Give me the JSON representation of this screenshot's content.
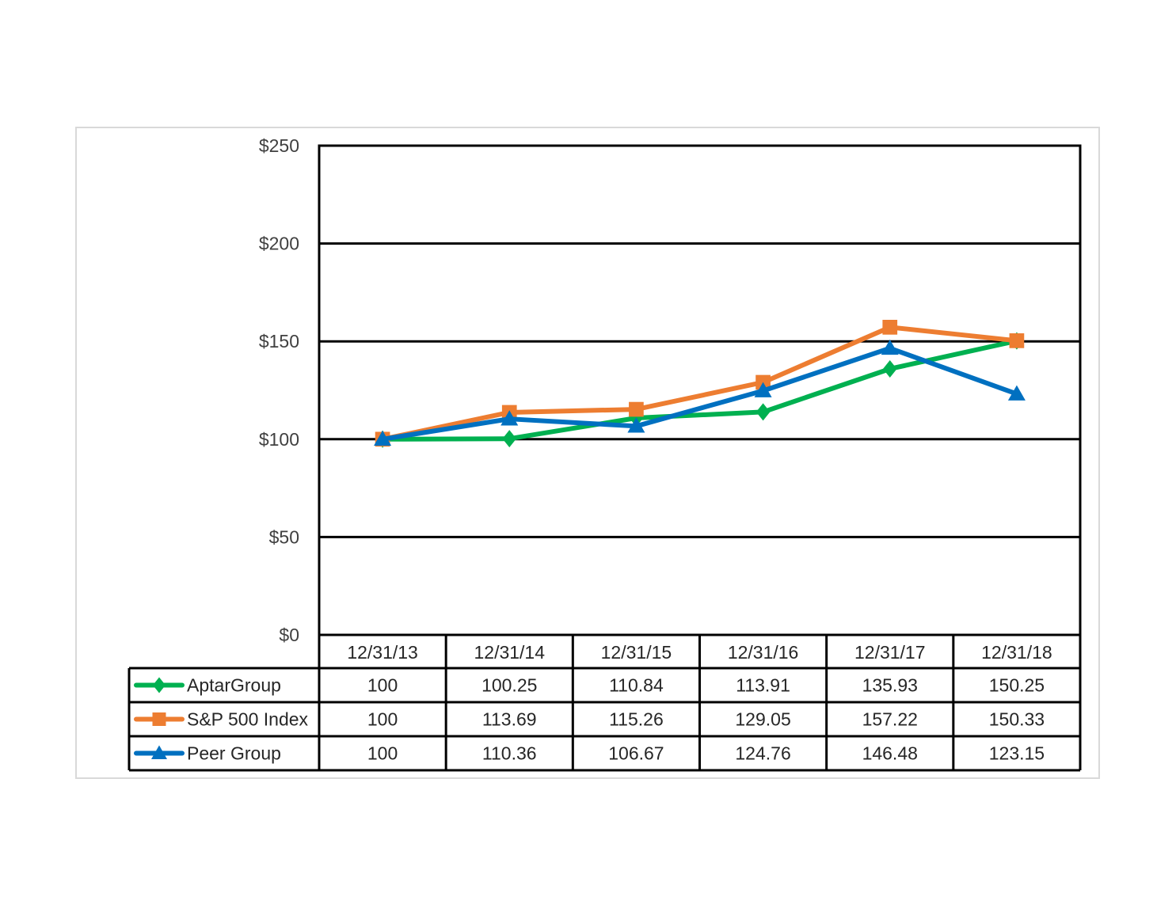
{
  "chart_data": {
    "type": "line",
    "title": "",
    "xlabel": "",
    "ylabel": "",
    "ylim": [
      0,
      250
    ],
    "yticks": [
      "$0",
      "$50",
      "$100",
      "$150",
      "$200",
      "$250"
    ],
    "grid": true,
    "legend_position": "data-table-left",
    "categories": [
      "12/31/13",
      "12/31/14",
      "12/31/15",
      "12/31/16",
      "12/31/17",
      "12/31/18"
    ],
    "series": [
      {
        "name": "AptarGroup",
        "color": "#00b050",
        "marker": "diamond",
        "values": [
          100,
          100.25,
          110.84,
          113.91,
          135.93,
          150.25
        ],
        "labels": [
          "100",
          "100.25",
          "110.84",
          "113.91",
          "135.93",
          "150.25"
        ]
      },
      {
        "name": "S&P 500 Index",
        "color": "#ed7d31",
        "marker": "square",
        "values": [
          100,
          113.69,
          115.26,
          129.05,
          157.22,
          150.33
        ],
        "labels": [
          "100",
          "113.69",
          "115.26",
          "129.05",
          "157.22",
          "150.33"
        ]
      },
      {
        "name": "Peer Group",
        "color": "#0070c0",
        "marker": "triangle",
        "values": [
          100,
          110.36,
          106.67,
          124.76,
          146.48,
          123.15
        ],
        "labels": [
          "100",
          "110.36",
          "106.67",
          "124.76",
          "146.48",
          "123.15"
        ]
      }
    ]
  }
}
